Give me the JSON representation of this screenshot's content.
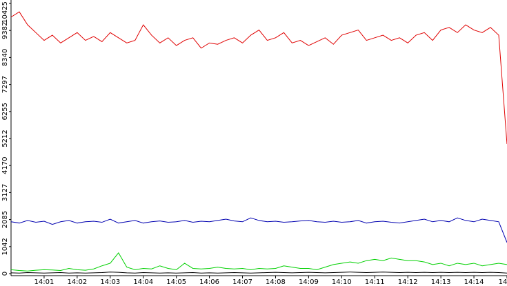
{
  "chart_data": {
    "type": "line",
    "x": [
      0,
      0.25,
      0.5,
      0.75,
      1,
      1.25,
      1.5,
      1.75,
      2,
      2.25,
      2.5,
      2.75,
      3,
      3.25,
      3.5,
      3.75,
      4,
      4.25,
      4.5,
      4.75,
      5,
      5.25,
      5.5,
      5.75,
      6,
      6.25,
      6.5,
      6.75,
      7,
      7.25,
      7.5,
      7.75,
      8,
      8.25,
      8.5,
      8.75,
      9,
      9.25,
      9.5,
      9.75,
      10,
      10.25,
      10.5,
      10.75,
      11,
      11.25,
      11.5,
      11.75,
      12,
      12.25,
      12.5,
      12.75,
      13,
      13.25,
      13.5,
      13.75,
      14,
      14.25,
      14.5,
      14.75,
      15
    ],
    "series": [
      {
        "color": "#e00000",
        "values": [
          9900,
          10100,
          9600,
          9300,
          9000,
          9200,
          8900,
          9100,
          9300,
          9000,
          9150,
          8950,
          9300,
          9100,
          8900,
          9000,
          9600,
          9200,
          8900,
          9100,
          8800,
          9000,
          9100,
          8700,
          8900,
          8850,
          9000,
          9100,
          8900,
          9200,
          9400,
          9000,
          9100,
          9300,
          8900,
          9000,
          8800,
          8950,
          9100,
          8850,
          9200,
          9300,
          9400,
          9000,
          9100,
          9200,
          9000,
          9100,
          8900,
          9200,
          9300,
          9000,
          9400,
          9500,
          9300,
          9600,
          9400,
          9300,
          9500,
          9200,
          5000
        ]
      },
      {
        "color": "#0000b0",
        "values": [
          2000,
          1950,
          2050,
          1980,
          2020,
          1900,
          2000,
          2050,
          1950,
          2000,
          2020,
          1980,
          2100,
          1950,
          2000,
          2050,
          1950,
          2000,
          2030,
          1980,
          2000,
          2050,
          1980,
          2020,
          2000,
          2050,
          2100,
          2030,
          2000,
          2150,
          2050,
          2000,
          2020,
          1980,
          2000,
          2030,
          2050,
          2000,
          1980,
          2020,
          1980,
          2000,
          2050,
          1950,
          2000,
          2020,
          1980,
          1950,
          2000,
          2050,
          2100,
          2000,
          2050,
          2000,
          2150,
          2050,
          2000,
          2100,
          2050,
          2000,
          1200
        ]
      },
      {
        "color": "#00d000",
        "values": [
          150,
          120,
          100,
          130,
          150,
          140,
          120,
          200,
          150,
          130,
          180,
          300,
          400,
          800,
          250,
          150,
          200,
          180,
          300,
          200,
          150,
          400,
          200,
          180,
          200,
          250,
          200,
          180,
          200,
          150,
          200,
          180,
          200,
          300,
          250,
          200,
          200,
          150,
          250,
          350,
          400,
          450,
          400,
          500,
          550,
          500,
          600,
          550,
          500,
          500,
          450,
          350,
          400,
          300,
          400,
          350,
          400,
          300,
          350,
          400,
          350
        ]
      },
      {
        "color": "#000000",
        "values": [
          30,
          20,
          40,
          30,
          20,
          30,
          40,
          20,
          30,
          20,
          30,
          40,
          60,
          50,
          30,
          20,
          40,
          30,
          20,
          30,
          20,
          30,
          40,
          20,
          30,
          20,
          30,
          40,
          30,
          20,
          30,
          40,
          50,
          40,
          30,
          40,
          50,
          40,
          30,
          40,
          50,
          60,
          50,
          40,
          50,
          60,
          50,
          40,
          50,
          40,
          50,
          40,
          50,
          40,
          50,
          40,
          50,
          40,
          50,
          40,
          20
        ]
      }
    ],
    "xlim": [
      0,
      15
    ],
    "xticks": [
      {
        "value": 1,
        "label": "14:01"
      },
      {
        "value": 2,
        "label": "14:02"
      },
      {
        "value": 3,
        "label": "14:03"
      },
      {
        "value": 4,
        "label": "14:04"
      },
      {
        "value": 5,
        "label": "14:05"
      },
      {
        "value": 6,
        "label": "14:06"
      },
      {
        "value": 7,
        "label": "14:07"
      },
      {
        "value": 8,
        "label": "14:08"
      },
      {
        "value": 9,
        "label": "14:09"
      },
      {
        "value": 10,
        "label": "14:10"
      },
      {
        "value": 11,
        "label": "14:11"
      },
      {
        "value": 12,
        "label": "14:12"
      },
      {
        "value": 13,
        "label": "14:13"
      },
      {
        "value": 14,
        "label": "14:14"
      },
      {
        "value": 15,
        "label": "14"
      }
    ],
    "ylim": [
      0,
      10425
    ],
    "yticks": [
      0,
      1042,
      2085,
      3127,
      4170,
      5212,
      6255,
      7297,
      8340,
      9382,
      10425
    ]
  }
}
